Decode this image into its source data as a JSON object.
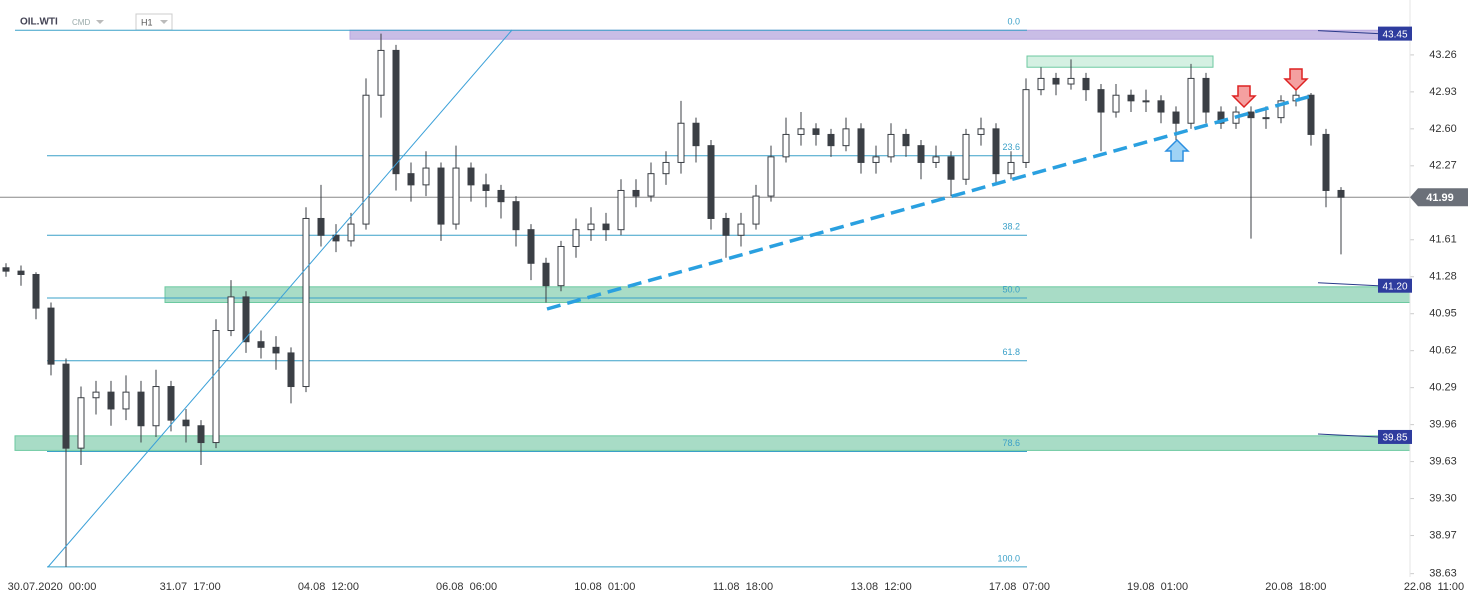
{
  "header": {
    "symbol": "OIL.WTI",
    "market": "CMD",
    "timeframe": "H1"
  },
  "chart_data": {
    "type": "candlestick",
    "ylim": [
      38.6,
      43.75
    ],
    "yticks": [
      {
        "value": 43.26,
        "label": "43.26"
      },
      {
        "value": 42.93,
        "label": "42.93"
      },
      {
        "value": 42.6,
        "label": "42.60"
      },
      42.27,
      41.61,
      41.28,
      40.95,
      40.62,
      40.29,
      39.96,
      39.63,
      {
        "value": 39.3,
        "label": "39.30"
      },
      38.97,
      38.63
    ],
    "x_labels": [
      "30.07.2020  00:00",
      "31.07  17:00",
      "04.08  12:00",
      "06.08  06:00",
      "10.08  01:00",
      "11.08  18:00",
      "13.08  12:00",
      "17.08  07:00",
      "19.08  01:00",
      "20.08  18:00",
      "22.08  11:00"
    ],
    "candles": {
      "open": [
        41.36,
        41.33,
        41.3,
        41.0,
        40.5,
        39.75,
        40.2,
        40.25,
        40.1,
        40.25,
        39.95,
        40.3,
        40.0,
        39.95,
        39.8,
        40.8,
        41.1,
        40.7,
        40.65,
        40.6,
        40.3,
        41.8,
        41.65,
        41.6,
        41.75,
        42.9,
        43.3,
        42.2,
        42.1,
        42.25,
        41.75,
        42.25,
        42.1,
        42.05,
        41.95,
        41.7,
        41.4,
        41.2,
        41.55,
        41.7,
        41.75,
        41.7,
        42.05,
        42.0,
        42.2,
        42.3,
        42.65,
        42.45,
        41.8,
        41.65,
        41.75,
        42.0,
        42.35,
        42.55,
        42.6,
        42.55,
        42.45,
        42.6,
        42.3,
        42.35,
        42.55,
        42.45,
        42.3,
        42.35,
        42.15,
        42.55,
        42.6,
        42.2,
        42.3,
        42.95,
        43.05,
        43.0,
        43.05,
        42.95,
        42.75,
        42.9,
        42.85,
        42.85,
        42.75,
        42.65,
        43.05,
        42.75,
        42.65,
        42.75,
        42.7,
        42.7,
        42.85,
        42.9,
        42.55,
        42.05
      ],
      "high": [
        41.4,
        41.38,
        41.32,
        41.05,
        40.55,
        40.3,
        40.35,
        40.35,
        40.4,
        40.35,
        40.45,
        40.35,
        40.1,
        40.0,
        40.9,
        41.25,
        41.15,
        40.8,
        40.75,
        40.65,
        41.9,
        42.1,
        41.75,
        41.85,
        43.05,
        43.45,
        43.35,
        42.3,
        42.4,
        42.3,
        42.45,
        42.3,
        42.2,
        42.1,
        42.0,
        41.75,
        41.45,
        41.6,
        41.8,
        41.9,
        41.85,
        42.15,
        42.15,
        42.3,
        42.4,
        42.85,
        42.7,
        42.5,
        41.85,
        41.85,
        42.1,
        42.45,
        42.7,
        42.75,
        42.65,
        42.6,
        42.7,
        42.65,
        42.45,
        42.65,
        42.6,
        42.5,
        42.45,
        42.4,
        42.6,
        42.7,
        42.65,
        42.4,
        43.05,
        43.15,
        43.1,
        43.22,
        43.1,
        43.0,
        43.0,
        42.95,
        42.95,
        42.9,
        42.8,
        43.18,
        43.1,
        42.8,
        42.8,
        42.8,
        42.8,
        42.9,
        42.95,
        42.92,
        42.6,
        42.08
      ],
      "low": [
        41.28,
        41.2,
        40.9,
        40.4,
        38.69,
        39.6,
        40.05,
        39.95,
        40.0,
        39.8,
        39.85,
        39.9,
        39.8,
        39.6,
        39.75,
        40.75,
        40.6,
        40.55,
        40.45,
        40.15,
        40.25,
        41.55,
        41.5,
        41.55,
        41.7,
        42.7,
        42.05,
        41.95,
        42.0,
        41.6,
        41.7,
        41.95,
        41.9,
        41.8,
        41.55,
        41.25,
        41.05,
        41.15,
        41.45,
        41.6,
        41.6,
        41.65,
        41.9,
        41.95,
        42.1,
        42.2,
        42.3,
        41.7,
        41.45,
        41.55,
        41.7,
        41.95,
        42.3,
        42.45,
        42.45,
        42.35,
        42.4,
        42.2,
        42.2,
        42.3,
        42.35,
        42.15,
        42.25,
        42.0,
        42.1,
        42.45,
        42.1,
        42.15,
        42.25,
        42.9,
        42.9,
        42.95,
        42.85,
        42.4,
        42.7,
        42.75,
        42.75,
        42.65,
        42.5,
        42.6,
        42.65,
        42.6,
        42.6,
        41.62,
        42.6,
        42.65,
        42.8,
        42.45,
        41.9,
        41.48
      ],
      "close": [
        41.33,
        41.3,
        41.0,
        40.5,
        39.75,
        40.2,
        40.25,
        40.1,
        40.25,
        39.95,
        40.3,
        40.0,
        39.95,
        39.8,
        40.8,
        41.1,
        40.7,
        40.65,
        40.6,
        40.3,
        41.8,
        41.65,
        41.6,
        41.75,
        42.9,
        43.3,
        42.2,
        42.1,
        42.25,
        41.75,
        42.25,
        42.1,
        42.05,
        41.95,
        41.7,
        41.4,
        41.2,
        41.55,
        41.7,
        41.75,
        41.7,
        42.05,
        42.0,
        42.2,
        42.3,
        42.65,
        42.45,
        41.8,
        41.65,
        41.75,
        42.0,
        42.35,
        42.55,
        42.6,
        42.55,
        42.45,
        42.6,
        42.3,
        42.35,
        42.55,
        42.45,
        42.3,
        42.35,
        42.15,
        42.55,
        42.6,
        42.2,
        42.3,
        42.95,
        43.05,
        43.0,
        43.05,
        42.95,
        42.75,
        42.9,
        42.85,
        42.85,
        42.75,
        42.65,
        43.05,
        42.75,
        42.65,
        42.75,
        42.7,
        42.7,
        42.85,
        42.9,
        42.55,
        42.05,
        41.99
      ]
    },
    "fib_levels": [
      {
        "value": 43.48,
        "label": "0.0"
      },
      {
        "value": 42.36,
        "label": "23.6"
      },
      {
        "value": 41.65,
        "label": "38.2"
      },
      {
        "value": 41.09,
        "label": "50.0"
      },
      {
        "value": 40.53,
        "label": "61.8"
      },
      {
        "value": 39.72,
        "label": "78.6"
      },
      {
        "value": 38.69,
        "label": "100.0"
      }
    ],
    "zones": [
      {
        "low": 43.4,
        "high": 43.48,
        "color": "#c9bde6"
      },
      {
        "low": 41.05,
        "high": 41.19,
        "color": "#a8dcc6"
      },
      {
        "low": 39.73,
        "high": 39.86,
        "color": "#a8dcc6"
      },
      {
        "low": 43.15,
        "high": 43.25,
        "color": "#d4f0e2"
      }
    ],
    "price_tags": [
      43.45,
      {
        "value": 41.2,
        "label": "41.20"
      },
      39.85
    ],
    "current_price": 41.99
  }
}
